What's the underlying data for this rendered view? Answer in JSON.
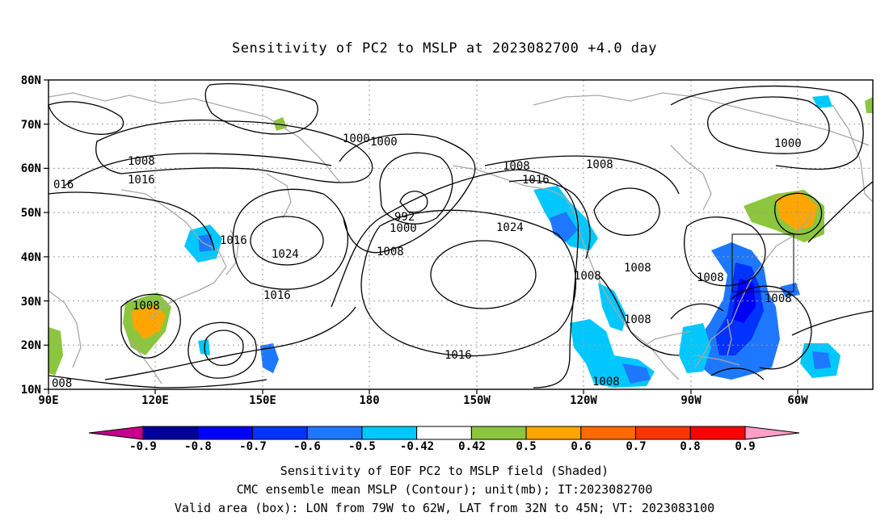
{
  "title": "Sensitivity of PC2 to MSLP at 2023082700 +4.0 day",
  "lat_labels": [
    "80N",
    "70N",
    "60N",
    "50N",
    "40N",
    "30N",
    "20N",
    "10N"
  ],
  "lon_labels": [
    "90E",
    "120E",
    "150E",
    "180",
    "150W",
    "120W",
    "90W",
    "60W"
  ],
  "contour_labels": [
    "1008",
    "016",
    "1016",
    "1000",
    "1000",
    "992",
    "1000",
    "1008",
    "1016",
    "1008",
    "1024",
    "1024",
    "1016",
    "1016",
    "1008",
    "1016",
    "1008",
    "1008",
    "1008",
    "1008",
    "1008",
    "1000",
    "1008",
    "008",
    "1008"
  ],
  "colorbar": {
    "ticks": [
      "-0.9",
      "-0.8",
      "-0.7",
      "-0.6",
      "-0.5",
      "-0.42",
      "0.42",
      "0.5",
      "0.6",
      "0.7",
      "0.8",
      "0.9"
    ],
    "colors": [
      "#00009a",
      "#0000ff",
      "#0033ff",
      "#1e78ff",
      "#00c8ff",
      "#ffffff",
      "#8cc63f",
      "#ffa500",
      "#ff6a00",
      "#ff3300",
      "#ff0000"
    ],
    "low_end": "#c8008c",
    "high_end": "#ff9fc8"
  },
  "captions": [
    "Sensitivity of EOF PC2 to MSLP field (Shaded)",
    "CMC ensemble mean MSLP (Contour); unit(mb); IT:2023082700",
    "Valid area (box): LON from 79W to 62W, LAT from 32N to 45N; VT: 2023083100"
  ]
}
